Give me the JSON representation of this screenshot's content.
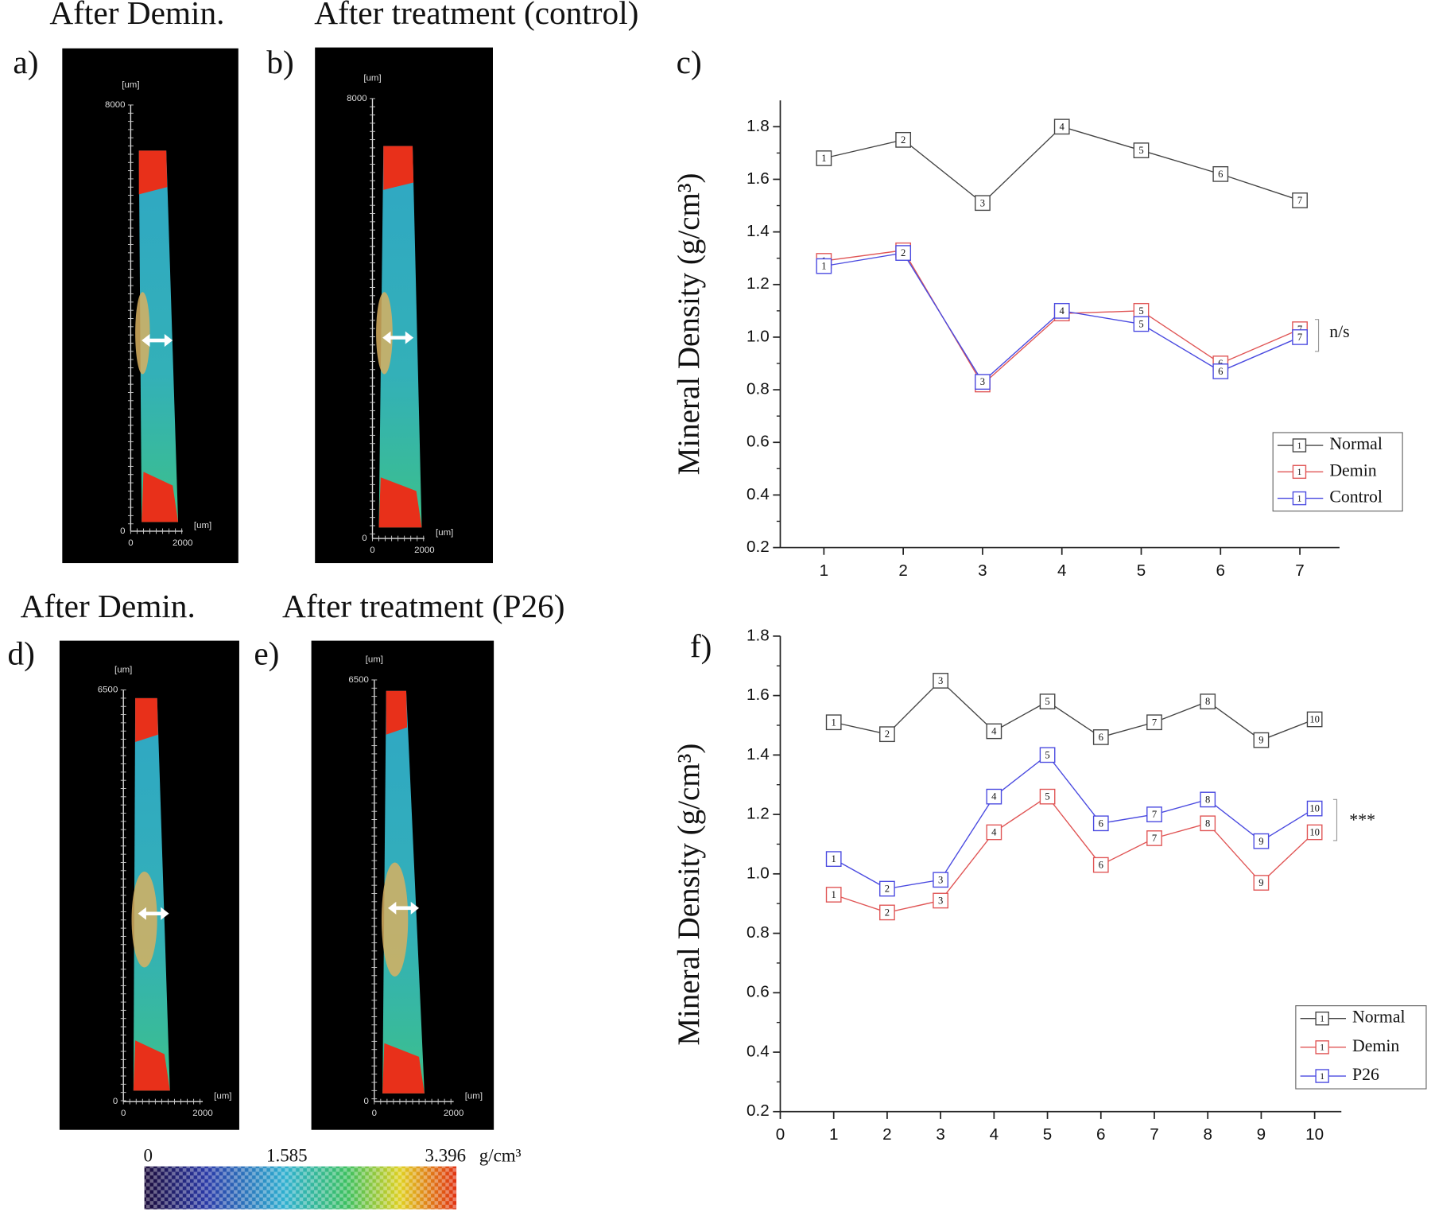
{
  "headings": [
    "After Demin.",
    "After treatment (control)",
    "After Demin.",
    "After treatment (P26)"
  ],
  "image_panels": [
    {
      "label": "a)",
      "y_ticks": [
        0,
        8000
      ],
      "x_ticks": [
        0,
        2000
      ],
      "y_unit": "[um]",
      "x_unit": "[um]"
    },
    {
      "label": "b)",
      "y_ticks": [
        0,
        8000
      ],
      "x_ticks": [
        0,
        2000
      ],
      "y_unit": "[um]",
      "x_unit": "[um]"
    },
    {
      "label": "d)",
      "y_ticks": [
        0,
        6500
      ],
      "x_ticks": [
        0,
        2000
      ],
      "y_unit": "[um]",
      "x_unit": "[um]"
    },
    {
      "label": "e)",
      "y_ticks": [
        0,
        6500
      ],
      "x_ticks": [
        0,
        2000
      ],
      "y_unit": "[um]",
      "x_unit": "[um]"
    }
  ],
  "colorbar": {
    "ticks": [
      0,
      1.585,
      3.396
    ],
    "unit": "g/cm³"
  },
  "chart_data": [
    {
      "type": "line",
      "label": "c)",
      "y_label": "Mineral Density (g/cm³)",
      "x": [
        1,
        2,
        3,
        4,
        5,
        6,
        7
      ],
      "xlim": [
        0.45,
        7.5
      ],
      "xticks": [
        1,
        2,
        3,
        4,
        5,
        6,
        7
      ],
      "ylim": [
        0.2,
        1.9
      ],
      "yticks": [
        0.2,
        0.4,
        0.6,
        0.8,
        {
          "value": 1,
          "label": "1.0"
        },
        1.2,
        1.4,
        1.6,
        1.8
      ],
      "series": [
        {
          "name": "Normal",
          "color": "#444444",
          "values": [
            1.68,
            1.75,
            1.51,
            1.8,
            1.71,
            1.62,
            1.52
          ]
        },
        {
          "name": "Demin",
          "color": "#e05555",
          "values": [
            1.29,
            1.33,
            0.82,
            1.09,
            1.1,
            0.9,
            1.03
          ]
        },
        {
          "name": "Control",
          "color": "#4a4ae0",
          "values": [
            1.27,
            1.32,
            0.83,
            1.1,
            1.05,
            0.87,
            1.0
          ]
        }
      ],
      "annotation": "n/s"
    },
    {
      "type": "line",
      "label": "f)",
      "y_label": "Mineral Density (g/cm³)",
      "x": [
        1,
        2,
        3,
        4,
        5,
        6,
        7,
        8,
        9,
        10
      ],
      "xlim": [
        0,
        10.5
      ],
      "xticks": [
        0,
        1,
        2,
        3,
        4,
        5,
        6,
        7,
        8,
        9,
        10
      ],
      "ylim": [
        0.2,
        1.8
      ],
      "yticks": [
        0.2,
        0.4,
        0.6,
        0.8,
        {
          "value": 1,
          "label": "1.0"
        },
        1.2,
        1.4,
        1.6,
        1.8
      ],
      "series": [
        {
          "name": "Normal",
          "color": "#444444",
          "values": [
            1.51,
            1.47,
            1.65,
            1.48,
            1.58,
            1.46,
            1.51,
            1.58,
            1.45,
            1.52
          ]
        },
        {
          "name": "Demin",
          "color": "#e05555",
          "values": [
            0.93,
            0.87,
            0.91,
            1.14,
            1.26,
            1.03,
            1.12,
            1.17,
            0.97,
            1.14
          ]
        },
        {
          "name": "P26",
          "color": "#4a4ae0",
          "values": [
            1.05,
            0.95,
            0.98,
            1.26,
            1.4,
            1.17,
            1.2,
            1.25,
            1.11,
            1.22
          ]
        }
      ],
      "annotation": "***"
    }
  ]
}
